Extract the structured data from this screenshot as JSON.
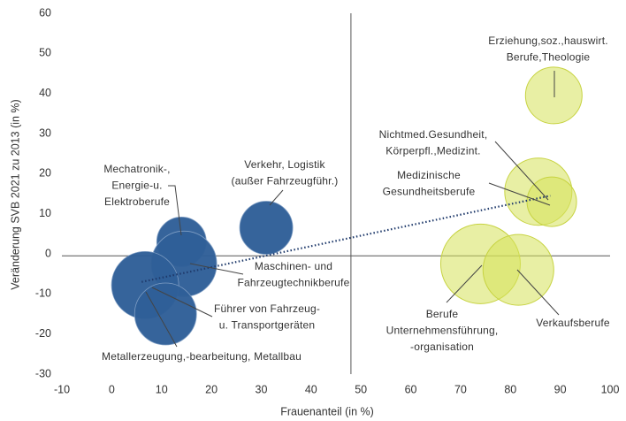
{
  "chart_data": {
    "type": "bubble",
    "xlabel": "Frauenanteil (in %)",
    "ylabel": "Veränderung SVB 2021 zu 2013 (in %)",
    "xlim": [
      -10,
      100
    ],
    "ylim": [
      -30,
      60
    ],
    "xticks": [
      -10,
      0,
      10,
      20,
      30,
      40,
      50,
      60,
      70,
      80,
      90,
      100
    ],
    "yticks": [
      -30,
      -20,
      -10,
      0,
      10,
      20,
      30,
      40,
      50,
      60
    ],
    "series": [
      {
        "color": "#2f5f98",
        "x": [
          14,
          31,
          14.5,
          6.7,
          10.8
        ],
        "y": [
          3,
          6.5,
          -2.5,
          -7.8,
          -15
        ],
        "size": [
          28,
          30,
          37,
          38,
          35
        ]
      },
      {
        "color": "#d6e25a",
        "x": [
          88.7,
          85.6,
          88.3,
          74,
          81.6
        ],
        "y": [
          39.5,
          15.5,
          13,
          -2.5,
          -4
        ],
        "size": [
          32,
          38,
          28,
          45,
          40
        ]
      }
    ],
    "trendline": {
      "color": "#1f3a6b",
      "x": [
        6,
        88
      ],
      "y": [
        -7,
        14.5
      ]
    },
    "reference_lines": {
      "x": 48,
      "y": -0.5
    },
    "annotations": [
      {
        "lines": [
          "Erziehung,soz.,hauswirt.",
          "Berufe,Theologie"
        ]
      },
      {
        "lines": [
          "Nichtmed.Gesundheit,",
          "Körperpfl.,Medizint."
        ]
      },
      {
        "lines": [
          "Medizinische",
          "Gesundheitsberufe"
        ]
      },
      {
        "lines": [
          "Mechatronik-,",
          "Energie-u.",
          "Elektroberufe"
        ]
      },
      {
        "lines": [
          "Verkehr, Logistik",
          "(außer Fahrzeugführ.)"
        ]
      },
      {
        "lines": [
          "Maschinen- und",
          "Fahrzeugtechnikberufe"
        ]
      },
      {
        "lines": [
          "Führer von Fahrzeug-",
          "u. Transportgeräten"
        ]
      },
      {
        "lines": [
          "Metallerzeugung,-bearbeitung, Metallbau"
        ]
      },
      {
        "lines": [
          "Berufe",
          "Unternehmensführung,",
          "-organisation"
        ]
      },
      {
        "lines": [
          "Verkaufsberufe"
        ]
      }
    ]
  }
}
